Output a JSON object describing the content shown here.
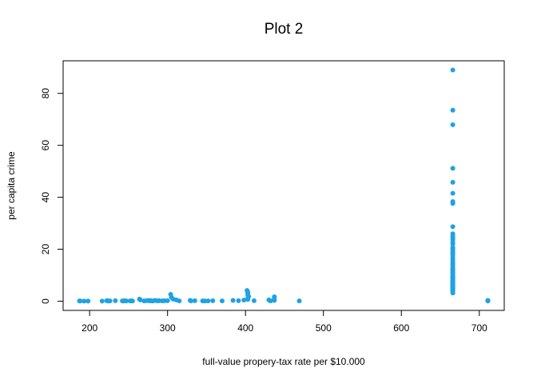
{
  "chart_data": {
    "type": "scatter",
    "title": "Plot 2",
    "x_label": "full-value propery-tax rate per $10.000",
    "y_label": "per capita crime",
    "color": "#1ea2e4",
    "xlim": [
      166,
      732
    ],
    "xticks": [
      200,
      300,
      400,
      500,
      600,
      700
    ],
    "ylim": [
      -3.55,
      92.54
    ],
    "yticks": [
      0,
      20,
      40,
      60,
      80
    ],
    "x": [
      187,
      188,
      193,
      198,
      216,
      222,
      223,
      224,
      226,
      233,
      242,
      244,
      245,
      247,
      252,
      254,
      255,
      264,
      265,
      270,
      273,
      276,
      277,
      279,
      281,
      284,
      287,
      289,
      293,
      296,
      300,
      304,
      305,
      307,
      311,
      315,
      329,
      330,
      335,
      345,
      348,
      352,
      358,
      370,
      384,
      391,
      398,
      402,
      403,
      403,
      403,
      404,
      403,
      403,
      411,
      430,
      432,
      437,
      437,
      437,
      469,
      666,
      666,
      666,
      666,
      666,
      666,
      666,
      666,
      666,
      666,
      666,
      666,
      666,
      666,
      666,
      666,
      666,
      666,
      666,
      666,
      666,
      666,
      666,
      666,
      666,
      666,
      666,
      666,
      666,
      666,
      666,
      666,
      666,
      666,
      666,
      666,
      666,
      666,
      666,
      666,
      666,
      666,
      666,
      666,
      666,
      666,
      666,
      666,
      666,
      666,
      666,
      666,
      666,
      666,
      666,
      666,
      666,
      666,
      666,
      666,
      711,
      711,
      711
    ],
    "y": [
      0.1,
      0.05,
      0.02,
      0.04,
      0.03,
      0.2,
      0.1,
      0.05,
      0.1,
      0.2,
      0.1,
      0.05,
      0.2,
      0.1,
      0.1,
      0.15,
      0.05,
      0.8,
      0.5,
      0.1,
      0.2,
      0.3,
      0.1,
      0.2,
      0.05,
      0.3,
      0.1,
      0.2,
      0.1,
      0.15,
      0.2,
      2.6,
      1.5,
      0.8,
      0.5,
      0.1,
      0.3,
      0.1,
      0.2,
      0.1,
      0.05,
      0.1,
      0.2,
      0.1,
      0.3,
      0.2,
      0.4,
      4.1,
      3.5,
      2.9,
      2.4,
      1.8,
      1.2,
      0.7,
      0.2,
      0.5,
      0.1,
      1.7,
      1.0,
      0.3,
      0.1,
      88.98,
      73.53,
      67.92,
      51.14,
      45.75,
      41.53,
      38.35,
      37.66,
      28.66,
      25.94,
      25.05,
      24.39,
      23.65,
      22.6,
      22.05,
      20.72,
      20.08,
      19.61,
      18.81,
      18.5,
      17.87,
      16.81,
      15.88,
      15.02,
      14.33,
      13.68,
      12.8,
      12.25,
      11.95,
      11.58,
      11.11,
      10.84,
      10.06,
      9.82,
      9.39,
      9.19,
      8.98,
      8.72,
      8.27,
      8.05,
      7.84,
      7.67,
      7.4,
      7.05,
      6.96,
      6.72,
      6.54,
      6.29,
      5.87,
      5.7,
      5.58,
      5.29,
      5.09,
      4.84,
      4.67,
      4.42,
      4.22,
      3.85,
      3.57,
      3.16,
      0.2,
      0.3,
      0.05
    ]
  }
}
